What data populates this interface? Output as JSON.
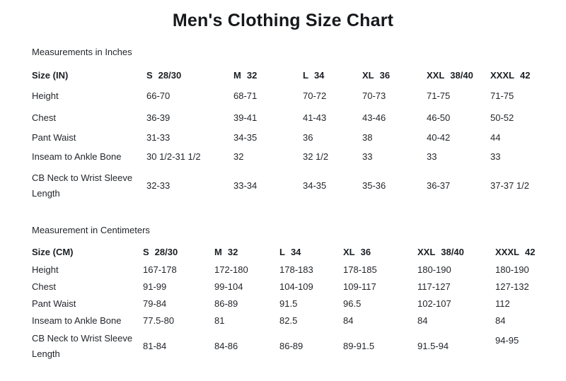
{
  "page": {
    "title": "Men's Clothing Size Chart"
  },
  "colors": {
    "background": "#ffffff",
    "text": "#23262b",
    "heading": "#16181c"
  },
  "tables": [
    {
      "section_heading": "Measurements in Inches",
      "header_label": "Size (IN)",
      "columns": [
        {
          "size": "S",
          "detail": "28/30"
        },
        {
          "size": "M",
          "detail": "32"
        },
        {
          "size": "L",
          "detail": "34"
        },
        {
          "size": "XL",
          "detail": "36"
        },
        {
          "size": "XXL",
          "detail": "38/40"
        },
        {
          "size": "XXXL",
          "detail": "42"
        }
      ],
      "rows": [
        {
          "label": "Height",
          "values": [
            "66-70",
            "68-71",
            "70-72",
            "70-73",
            "71-75",
            "71-75"
          ]
        },
        {
          "label": "Chest",
          "values": [
            "36-39",
            "39-41",
            "41-43",
            "43-46",
            "46-50",
            "50-52"
          ]
        },
        {
          "label": "Pant Waist",
          "values": [
            "31-33",
            "34-35",
            "36",
            "38",
            "40-42",
            "44"
          ]
        },
        {
          "label": "Inseam to Ankle Bone",
          "values": [
            "30 1/2-31 1/2",
            "32",
            "32 1/2",
            "33",
            "33",
            "33"
          ]
        },
        {
          "label": "CB Neck to Wrist Sleeve Length",
          "values": [
            "32-33",
            "33-34",
            "34-35",
            "35-36",
            "36-37",
            "37-37 1/2"
          ]
        }
      ]
    },
    {
      "section_heading": "Measurement in Centimeters",
      "header_label": "Size (CM)",
      "columns": [
        {
          "size": "S",
          "detail": "28/30"
        },
        {
          "size": "M",
          "detail": "32"
        },
        {
          "size": "L",
          "detail": "34"
        },
        {
          "size": "XL",
          "detail": "36"
        },
        {
          "size": "XXL",
          "detail": "38/40"
        },
        {
          "size": "XXXL",
          "detail": "42"
        }
      ],
      "rows": [
        {
          "label": "Height",
          "values": [
            "167-178",
            "172-180",
            "178-183",
            "178-185",
            "180-190",
            "180-190"
          ]
        },
        {
          "label": "Chest",
          "values": [
            "91-99",
            "99-104",
            "104-109",
            "109-117",
            "117-127",
            "127-132"
          ]
        },
        {
          "label": "Pant Waist",
          "values": [
            "79-84",
            "86-89",
            "91.5",
            "96.5",
            "102-107",
            "112"
          ]
        },
        {
          "label": "Inseam to Ankle Bone",
          "values": [
            "77.5-80",
            "81",
            "82.5",
            "84",
            "84",
            "84"
          ]
        },
        {
          "label": "CB Neck to Wrist Sleeve Length",
          "values": [
            "81-84",
            "84-86",
            "86-89",
            "89-91.5",
            "91.5-94",
            "94-95"
          ]
        }
      ]
    }
  ]
}
